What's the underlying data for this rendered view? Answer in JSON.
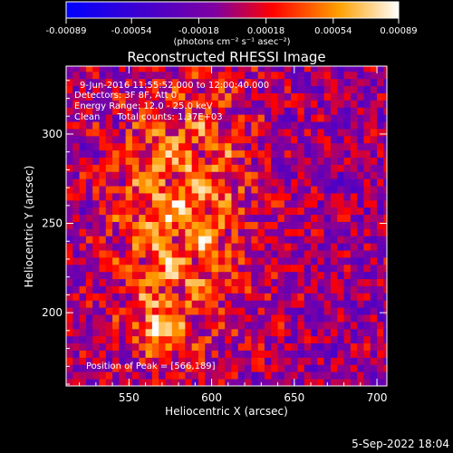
{
  "chart_data": {
    "type": "heatmap",
    "title": "Reconstructed RHESSI Image",
    "xlabel": "Heliocentric X (arcsec)",
    "ylabel": "Heliocentric Y (arcsec)",
    "xlim": [
      512,
      706
    ],
    "ylim": [
      159,
      338
    ],
    "x_ticks": [
      550,
      600,
      650,
      700
    ],
    "y_ticks": [
      200,
      250,
      300
    ],
    "colorbar": {
      "range": [
        -0.00089,
        0.00089
      ],
      "tick_values": [
        -0.00089,
        -0.00054,
        -0.00018,
        0.00018,
        0.00054,
        0.00089
      ],
      "tick_labels": [
        "-0.00089",
        "-0.00054",
        "-0.00018",
        "0.00018",
        "0.00054",
        "0.00089"
      ],
      "unit_label": "(photons cm⁻² s⁻¹ asec⁻²)",
      "colors": [
        "#0000ff",
        "#8000a0",
        "#ff0000",
        "#ffa000",
        "#ffffff"
      ]
    },
    "annotations": {
      "time": "9-Jun-2016 11:55:52.000 to 12:00:40.000",
      "detectors": "Detectors: 3F 8F, Att 0",
      "energy": "Energy Range: 12.0 - 25.0 keV",
      "method": "Clean      Total counts: 1.37E+03",
      "peak": "Position of Peak = [566,189]"
    },
    "peak_position": [
      566,
      189
    ],
    "source_center": [
      580,
      255
    ]
  },
  "footer_date": "5-Sep-2022 18:04"
}
